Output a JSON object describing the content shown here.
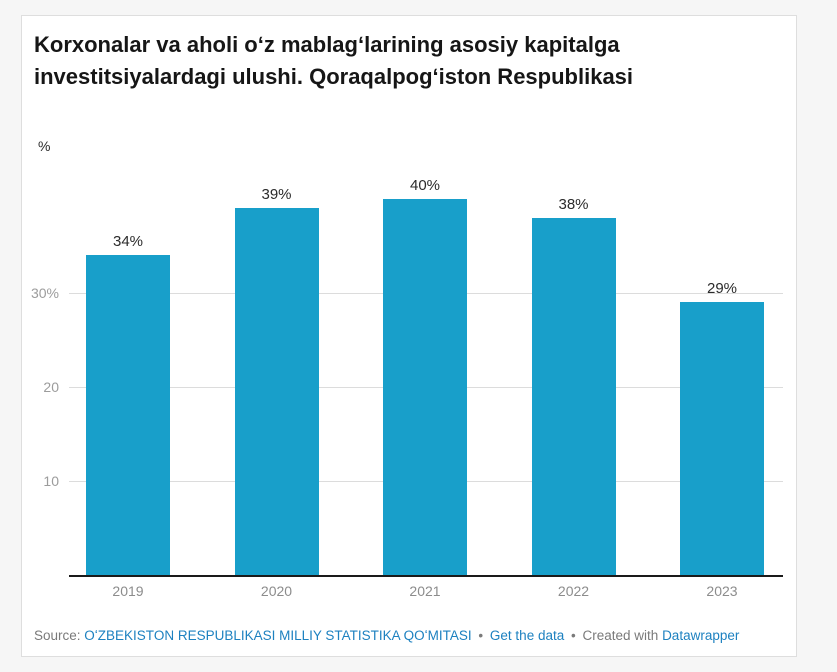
{
  "title": "Korxonalar va aholi oʻz mablagʻlarining asosiy kapitalga investitsiyalardagi ulushi. Qoraqalpogʻiston Respublikasi",
  "chart_data": {
    "type": "bar",
    "title": "Korxonalar va aholi oʻz mablagʻlarining asosiy kapitalga investitsiyalardagi ulushi. Qoraqalpogʻiston Respublikasi",
    "categories": [
      "2019",
      "2020",
      "2021",
      "2022",
      "2023"
    ],
    "values": [
      34,
      39,
      40,
      38,
      29
    ],
    "value_labels": [
      "34%",
      "39%",
      "40%",
      "38%",
      "29%"
    ],
    "xlabel": "",
    "ylabel": "%",
    "ylim": [
      0,
      44
    ],
    "yticks": [
      {
        "value": 10,
        "label": "10"
      },
      {
        "value": 20,
        "label": "20"
      },
      {
        "value": 30,
        "label": "30%"
      }
    ],
    "grid": true,
    "legend": "none",
    "bar_color": "#189fca"
  },
  "footer": {
    "source_prefix": "Source:",
    "source_link": "OʻZBEKISTON RESPUBLIKASI MILLIY STATISTIKA QOʻMITASI",
    "separator": "•",
    "get_data_link": "Get the data",
    "created_with": "Created with",
    "datawrapper_link": "Datawrapper"
  },
  "colors": {
    "bar": "#189fca",
    "link": "#1d81c0",
    "grid_line": "#dcdcdc",
    "axis_line": "#1a1a1a",
    "y_tick_label": "#9c9c9c",
    "category_label": "#8c8c8c",
    "value_label": "#2b2b2b",
    "footer_text": "#7a7a7a",
    "title_text": "#161616",
    "card_background": "#ffffff",
    "card_border": "#dedede",
    "page_background": "#f6f6f6"
  }
}
